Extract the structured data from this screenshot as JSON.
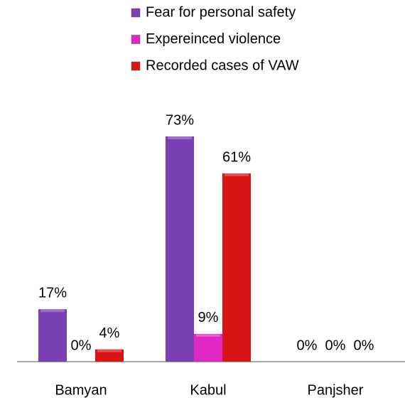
{
  "chart_data": {
    "type": "bar",
    "categories": [
      "Bamyan",
      "Kabul",
      "Panjsher"
    ],
    "series": [
      {
        "name": "Fear for personal safety",
        "color": "#7b3fb4",
        "values": [
          17,
          73,
          0
        ],
        "value_labels": [
          "17%",
          "73%",
          "0%"
        ]
      },
      {
        "name": "Expereinced violence",
        "color": "#e026c4",
        "values": [
          0,
          9,
          0
        ],
        "value_labels": [
          "0%",
          "9%",
          "0%"
        ]
      },
      {
        "name": "Recorded cases of VAW",
        "color": "#d91414",
        "values": [
          4,
          61,
          0
        ],
        "value_labels": [
          "4%",
          "61%",
          "0%"
        ]
      }
    ],
    "legend": "top"
  }
}
